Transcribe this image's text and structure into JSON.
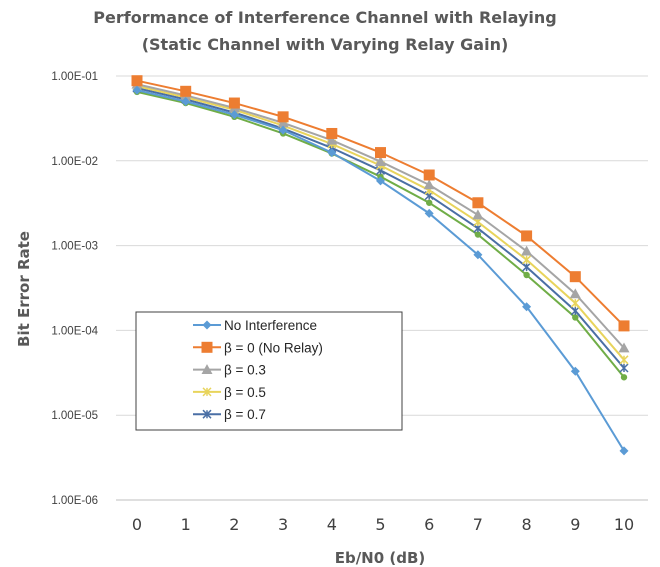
{
  "chart_data": {
    "type": "line",
    "title": "Performance of Interference Channel with Relaying",
    "subtitle": "(Static Channel with Varying Relay Gain)",
    "xlabel": "Eb/N0 (dB)",
    "ylabel": "Bit Error Rate",
    "y_scale": "log",
    "ylim": [
      1e-06,
      0.1
    ],
    "y_tick_labels": [
      "1.00E-01",
      "1.00E-02",
      "1.00E-03",
      "1.00E-04",
      "1.00E-05",
      "1.00E-06"
    ],
    "x": [
      0,
      1,
      2,
      3,
      4,
      5,
      6,
      7,
      8,
      9,
      10
    ],
    "x_tick_labels": [
      "0",
      "1",
      "2",
      "3",
      "4",
      "5",
      "6",
      "7",
      "8",
      "9",
      "10"
    ],
    "grid": "horizontal",
    "legend_position": "bottom-left",
    "series": [
      {
        "name": "No Interference",
        "color": "#5b9bd5",
        "marker": "diamond",
        "values": [
          0.068,
          0.05,
          0.035,
          0.023,
          0.0125,
          0.0058,
          0.0024,
          0.00078,
          0.00019,
          3.3e-05,
          3.8e-06
        ]
      },
      {
        "name": "β = 0 (No Relay)",
        "color": "#ed7d31",
        "marker": "square",
        "values": [
          0.088,
          0.066,
          0.048,
          0.033,
          0.021,
          0.0125,
          0.0068,
          0.0032,
          0.0013,
          0.00043,
          0.000113
        ]
      },
      {
        "name": "β = 0.3",
        "color": "#a5a5a5",
        "marker": "triangle",
        "values": [
          0.08,
          0.059,
          0.042,
          0.028,
          0.0175,
          0.0098,
          0.0052,
          0.0023,
          0.00086,
          0.00027,
          6.2e-05
        ]
      },
      {
        "name": "β = 0.5",
        "color": "#e8d45c",
        "marker": "x",
        "values": [
          0.076,
          0.056,
          0.04,
          0.026,
          0.0158,
          0.0088,
          0.0045,
          0.0019,
          0.00068,
          0.00021,
          4.5e-05
        ]
      },
      {
        "name": "β = 0.7",
        "color": "#4a6fa5",
        "marker": "x",
        "values": [
          0.072,
          0.053,
          0.037,
          0.024,
          0.0142,
          0.0077,
          0.0039,
          0.0016,
          0.00056,
          0.00017,
          3.6e-05
        ]
      },
      {
        "name": "",
        "color": "#70ad47",
        "marker": "circle",
        "values": [
          0.065,
          0.048,
          0.033,
          0.021,
          0.0122,
          0.0065,
          0.0032,
          0.00135,
          0.00045,
          0.000142,
          2.8e-05
        ]
      }
    ]
  }
}
